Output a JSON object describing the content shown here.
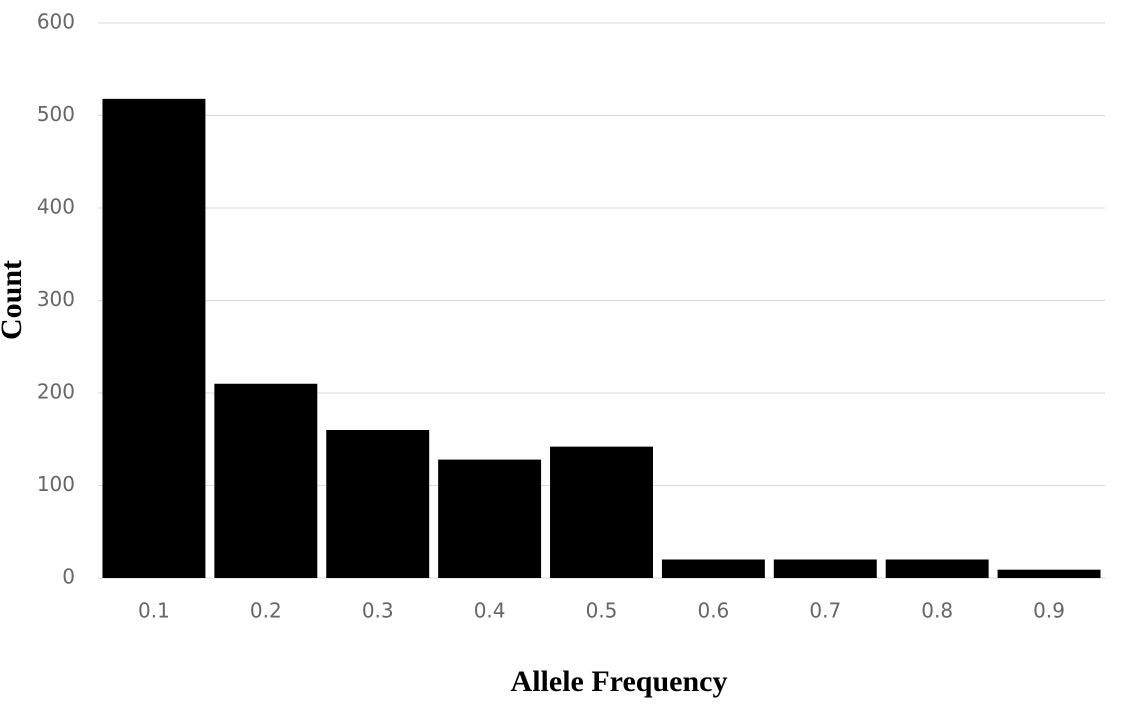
{
  "chart_data": {
    "type": "bar",
    "x_label": "Allele Frequency",
    "y_label": "Count",
    "categories": [
      "0.1",
      "0.2",
      "0.3",
      "0.4",
      "0.5",
      "0.6",
      "0.7",
      "0.8",
      "0.9"
    ],
    "values": [
      518,
      210,
      160,
      128,
      142,
      20,
      20,
      20,
      9
    ],
    "color": "#000000",
    "ylim": [
      0,
      600
    ],
    "yticks": [
      0,
      100,
      200,
      300,
      400,
      500,
      600
    ],
    "grid": true
  }
}
